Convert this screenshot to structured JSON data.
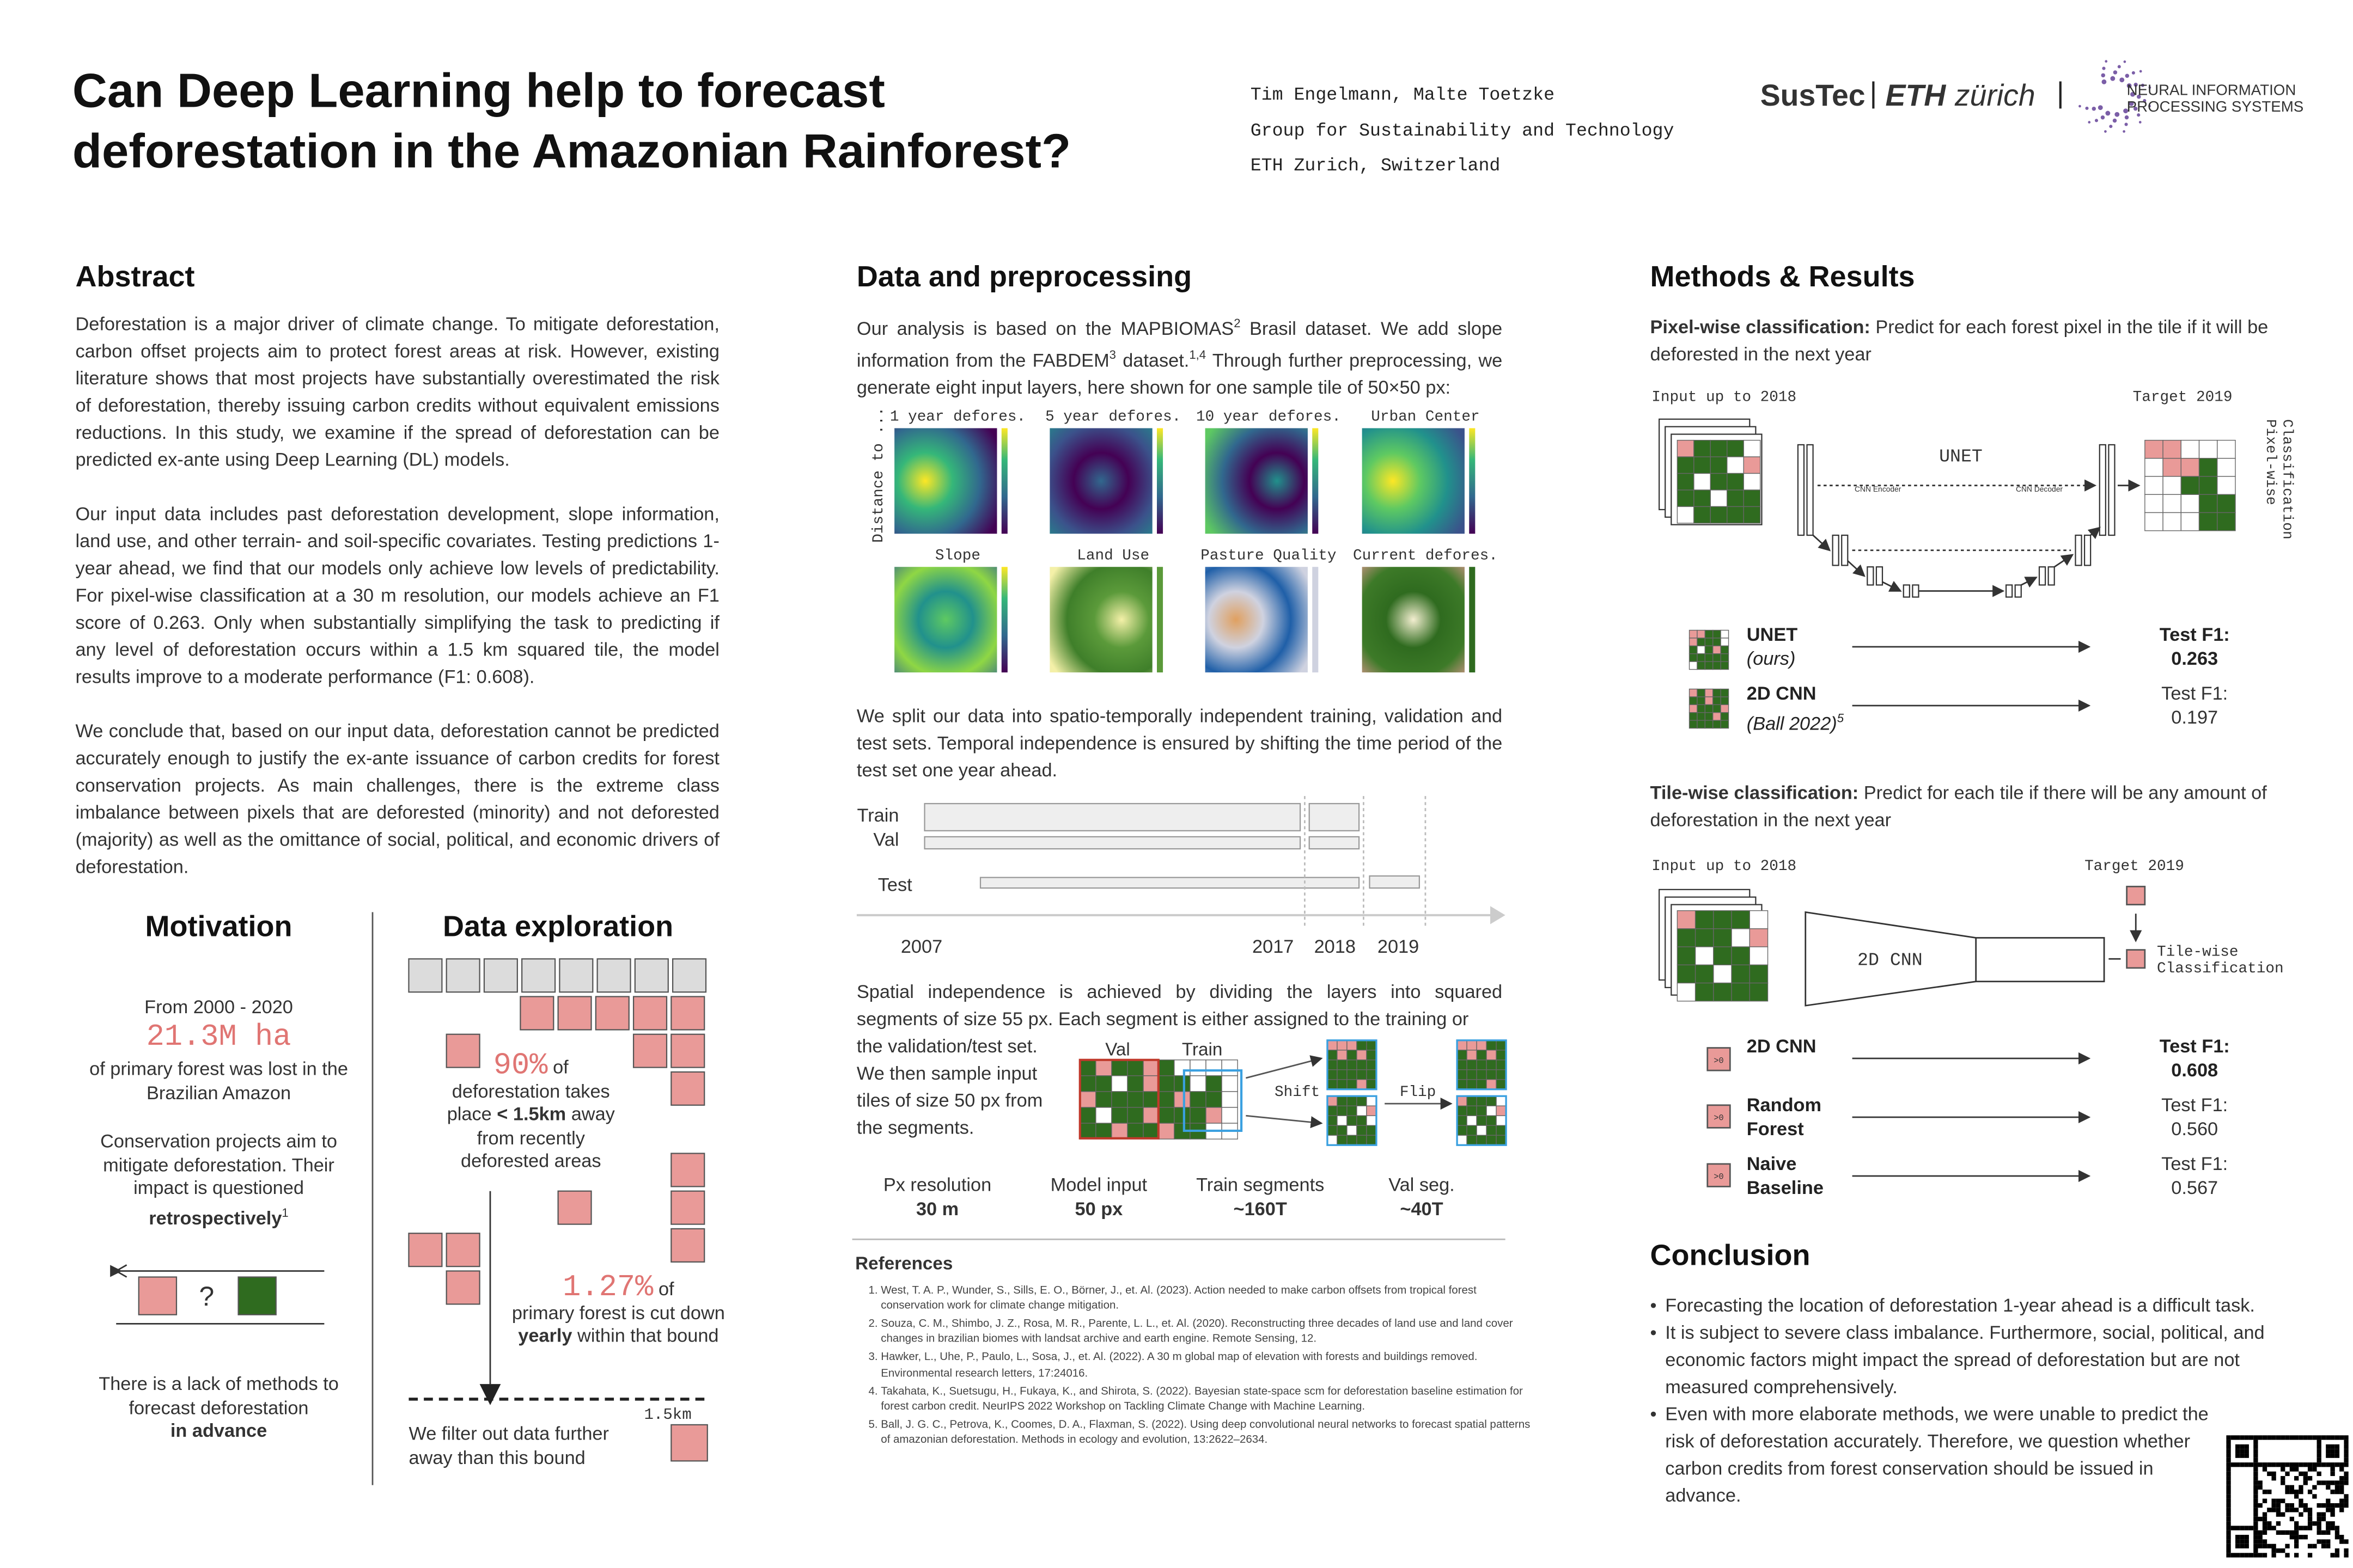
{
  "header": {
    "title_lines": [
      "Can Deep Learning help to forecast",
      "deforestation in the Amazonian Rainforest?"
    ],
    "authors": "Tim Engelmann, Malte Toetzke",
    "affiliation": "Group for Sustainability and Technology",
    "location": "ETH Zurich, Switzerland",
    "logos": [
      "SusTec",
      "ETH",
      "zürich",
      "NEURAL INFORMATION",
      "PROCESSING SYSTEMS"
    ]
  },
  "abstract": {
    "heading": "Abstract",
    "paragraphs": [
      "Deforestation is a major driver of climate change. To mitigate deforestation, carbon offset projects aim to protect forest areas at risk. However, existing literature shows that most projects have substantially overestimated the risk of deforestation, thereby issuing carbon credits without equivalent emissions reductions. In this study, we examine if the spread of deforestation can be predicted ex-ante using Deep Learning (DL) models.",
      "Our input data includes past deforestation development, slope information, land use, and other terrain- and soil-specific covariates. Testing predictions 1-year ahead, we find that our models only achieve low levels of predictability. For pixel-wise classification at a 30 m resolution, our models achieve an F1 score of 0.263. Only when substantially simplifying the task to predicting if any level of deforestation occurs within a 1.5 km squared tile, the model results improve to a moderate performance (F1: 0.608).",
      "We conclude that, based on our input data, deforestation cannot be predicted accurately enough to justify the ex-ante issuance of carbon credits for forest conservation projects. As main challenges, there is the extreme class imbalance between pixels that are deforested (minority) and not deforested (majority) as well as the omittance of social, political, and economic drivers of deforestation."
    ]
  },
  "motivation": {
    "heading": "Motivation",
    "period": "From 2000 - 2020",
    "stat": "21.3M ha",
    "stat_text": "of primary forest was lost in the Brazilian Amazon",
    "projects_text": "Conservation projects aim to mitigate deforestation. Their impact is questioned",
    "projects_bold": "retrospectively",
    "projects_ref": "1",
    "question": "?",
    "lack_text": "There is a lack of methods to forecast deforestation",
    "lack_bold": "in advance"
  },
  "exploration": {
    "heading": "Data exploration",
    "stat1": "90%",
    "stat1_of": "of",
    "stat1_text": "deforestation takes place",
    "stat1_bold": "< 1.5km",
    "stat1_text2": "away from recently deforested areas",
    "stat2": "1.27%",
    "stat2_of": "of",
    "stat2_text": "primary forest is cut down",
    "stat2_bold": "yearly",
    "stat2_text2": "within that bound",
    "distance": "1.5km",
    "filter_text": "We filter out data further away than this bound"
  },
  "data": {
    "heading": "Data and preprocessing",
    "intro": [
      "Our analysis is based on the MAPBIOMAS",
      "2",
      " Brasil dataset. We add slope information from the FABDEM",
      "3",
      " dataset.",
      "1,4",
      " Through further preprocessing, we generate eight input layers, here shown for one sample tile of 50×50 px:"
    ],
    "layer_axis": "Distance to ...",
    "layers": [
      "1 year defores.",
      "5 year defores.",
      "10 year defores.",
      "Urban Center",
      "Slope",
      "Land Use",
      "Pasture Quality",
      "Current defores."
    ],
    "split_text": "We split our data into spatio-temporally independent training, validation and test sets. Temporal independence is ensured by shifting the time period of the test set one year ahead.",
    "timeline_rows": [
      "Train",
      "Val",
      "Test"
    ],
    "timeline_years": [
      "2007",
      "2017",
      "2018",
      "2019"
    ],
    "spatial_text": [
      "Spatial independence is achieved by dividing the layers into squared segments of size 55 px. Each segment is either assigned to the training or",
      "the validation/test set. We then sample input tiles of size 50 px from the segments."
    ],
    "segment_labels": [
      "Val",
      "Train"
    ],
    "augment_labels": [
      "Shift",
      "Flip"
    ],
    "stats": [
      {
        "label": "Px resolution",
        "value": "30 m"
      },
      {
        "label": "Model input",
        "value": "50 px"
      },
      {
        "label": "Train segments",
        "value": "~160T"
      },
      {
        "label": "Val seg.",
        "value": "~40T"
      }
    ]
  },
  "references": {
    "heading": "References",
    "items": [
      "West, T. A. P., Wunder, S., Sills, E. O., Börner, J., et. Al. (2023). Action needed to make carbon offsets from tropical forest conservation work for climate change mitigation.",
      "Souza, C. M., Shimbo, J. Z., Rosa, M. R., Parente, L. L., et. Al. (2020). Reconstructing three decades of land use and land cover changes in brazilian biomes with landsat archive and earth engine. Remote Sensing, 12.",
      "Hawker, L., Uhe, P., Paulo, L., Sosa, J., et. Al. (2022). A 30 m global map of elevation with forests and buildings removed. Environmental research letters, 17:24016.",
      "Takahata, K., Suetsugu, H., Fukaya, K., and Shirota, S. (2022). Bayesian state-space scm for deforestation baseline estimation for forest carbon credit. NeurIPS 2022 Workshop on Tackling Climate Change with Machine Learning.",
      "Ball, J. G. C., Petrova, K., Coomes, D. A., Flaxman, S. (2022). Using deep convolutional neural networks to forecast spatial patterns of amazonian deforestation. Methods in ecology and evolution, 13:2622–2634."
    ]
  },
  "methods": {
    "heading": "Methods & Results",
    "pixel": {
      "lead": "Pixel-wise classification:",
      "text": " Predict for each forest pixel in the tile if it will be deforested in the next year",
      "input": "Input up to 2018",
      "target": "Target 2019",
      "net": "UNET",
      "encoder": "CNN Encoder",
      "decoder": "CNN Decoder",
      "side": [
        "Pixel-wise",
        "Classification"
      ],
      "results": [
        {
          "model": "UNET",
          "note": "(ours)",
          "metric": "Test F1:",
          "score": "0.263"
        },
        {
          "model": "2D CNN",
          "note": "(Ball 2022)",
          "ref": "5",
          "metric": "Test F1:",
          "score": "0.197"
        }
      ]
    },
    "tile": {
      "lead": "Tile-wise classification:",
      "text": " Predict for each tile if there will be any amount of deforestation in the next year",
      "input": "Input up to 2018",
      "target": "Target 2019",
      "net": "2D CNN",
      "side": [
        "Tile-wise",
        "Classification"
      ],
      "badge": ">0",
      "results": [
        {
          "model": "2D CNN",
          "metric": "Test F1:",
          "score": "0.608"
        },
        {
          "model": "Random Forest",
          "metric": "Test F1:",
          "score": "0.560"
        },
        {
          "model": "Naive Baseline",
          "metric": "Test F1:",
          "score": "0.567"
        }
      ]
    }
  },
  "conclusion": {
    "heading": "Conclusion",
    "bullets": [
      "Forecasting the location of deforestation 1-year ahead is a difficult task.",
      "It is subject to severe class imbalance. Furthermore, social, political, and economic factors might impact the spread of deforestation but are not measured comprehensively.",
      "Even with more elaborate methods, we were unable to predict the risk of deforestation accurately. Therefore, we question whether carbon credits from forest conservation should be issued in advance."
    ]
  }
}
